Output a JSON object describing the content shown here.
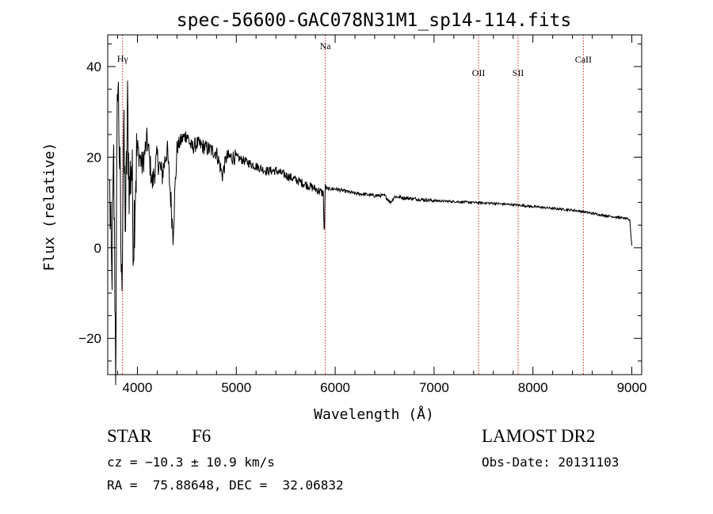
{
  "chart_data": {
    "type": "line",
    "title": "spec-56600-GAC078N31M1_sp14-114.fits",
    "xlabel": "Wavelength (Å)",
    "ylabel": "Flux (relative)",
    "xlim": [
      3700,
      9100
    ],
    "ylim": [
      -28,
      47
    ],
    "xticks": [
      4000,
      5000,
      6000,
      7000,
      8000,
      9000
    ],
    "yticks": [
      -20,
      0,
      20,
      40
    ],
    "grid": false,
    "line_color": "#000000",
    "marker_color": "#cc2222",
    "lines": [
      {
        "label": "Hγ",
        "x": 3850
      },
      {
        "label": "Na",
        "x": 5900
      },
      {
        "label": "OII",
        "x": 7450
      },
      {
        "label": "SII",
        "x": 7850
      },
      {
        "label": "CaII",
        "x": 8510
      }
    ],
    "series": [
      {
        "x": [
          3720,
          3740,
          3760,
          3780,
          3800,
          3820,
          3840,
          3860,
          3880,
          3900,
          3920,
          3940,
          3960,
          3980,
          4000,
          4050,
          4100,
          4150,
          4200,
          4250,
          4300,
          4340,
          4360,
          4400,
          4450,
          4500,
          4550,
          4600,
          4700,
          4800,
          4860,
          4900,
          5000,
          5100,
          5200,
          5300,
          5400,
          5500,
          5600,
          5700,
          5800,
          5880,
          5890,
          5900,
          5910,
          6000,
          6100,
          6200,
          6300,
          6400,
          6500,
          6560,
          6600,
          6700,
          6800,
          6900,
          7000,
          7200,
          7400,
          7600,
          7800,
          8000,
          8200,
          8400,
          8500,
          8600,
          8700,
          8800,
          8900,
          8950,
          8980,
          9000
        ],
        "y": [
          12,
          -8,
          18,
          -25,
          40,
          20,
          -10,
          25,
          5,
          30,
          12,
          20,
          2,
          15,
          22,
          18,
          24,
          14,
          20,
          16,
          22,
          10,
          3,
          22,
          24,
          25,
          22,
          23,
          22,
          21,
          16,
          20,
          20,
          19,
          18,
          17,
          17,
          16,
          15,
          14,
          13,
          12,
          2,
          14,
          13,
          13,
          12.5,
          12,
          11.8,
          11.5,
          11.5,
          10,
          11.3,
          11,
          10.8,
          10.6,
          10.4,
          10.2,
          10,
          9.8,
          9.5,
          9.1,
          8.7,
          8.3,
          8.0,
          7.6,
          7.2,
          6.9,
          6.6,
          6.4,
          6.0,
          0.5
        ]
      }
    ]
  },
  "info": {
    "class": "STAR",
    "subclass": "F6",
    "survey": "LAMOST DR2",
    "cz": "cz = −10.3 ± 10.9 km/s",
    "obsdate": "Obs-Date: 20131103",
    "radec": "RA =  75.88648, DEC =  32.06832"
  }
}
